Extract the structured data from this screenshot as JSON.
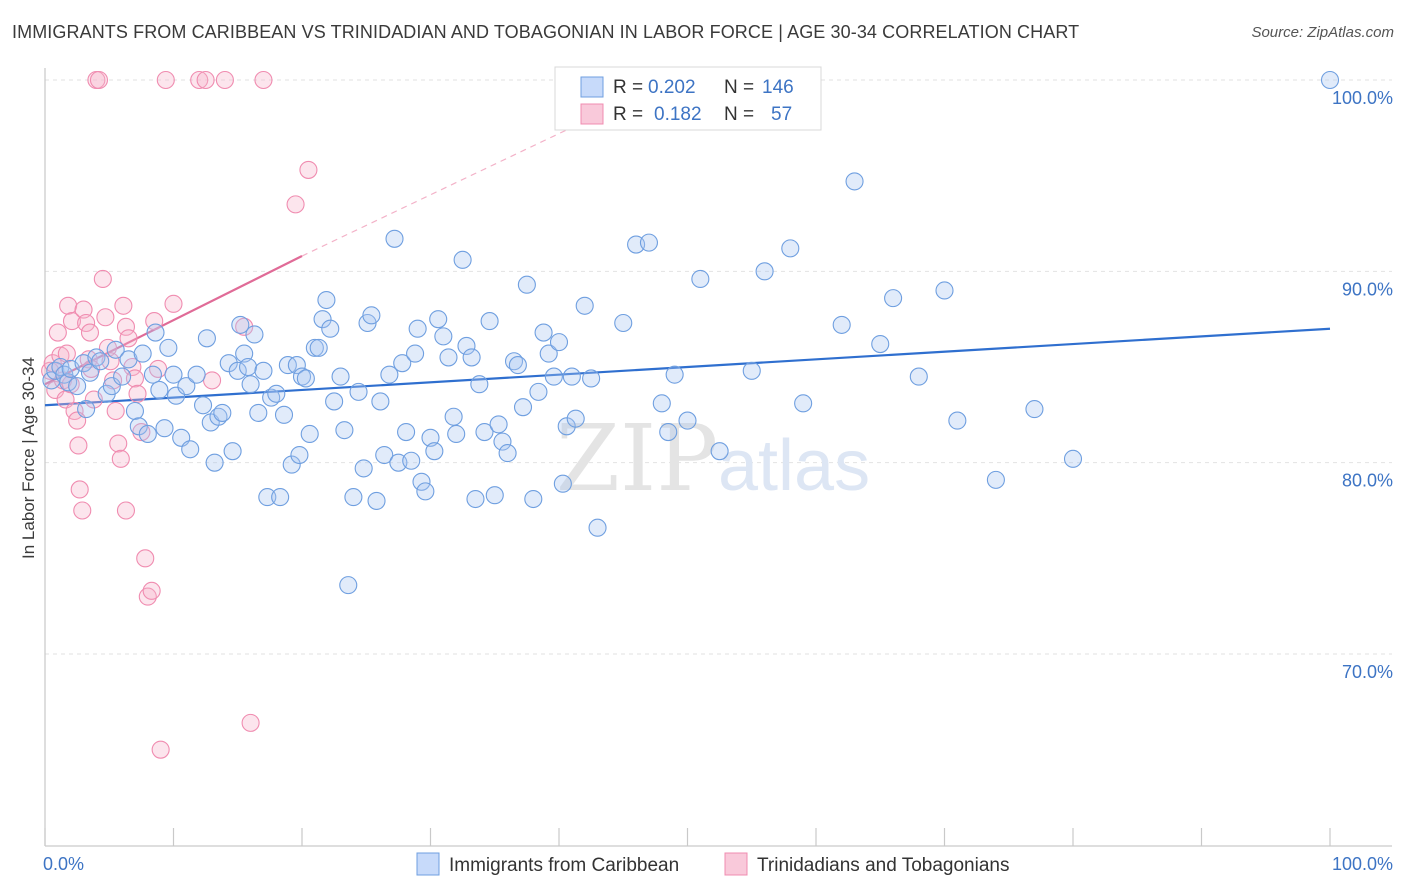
{
  "title": "IMMIGRANTS FROM CARIBBEAN VS TRINIDADIAN AND TOBAGONIAN IN LABOR FORCE | AGE 30-34 CORRELATION CHART",
  "source": "Source: ZipAtlas.com",
  "colors": {
    "blue": "#6f9fe0",
    "pink": "#f08cb0",
    "blue_line": "#2f6fcf",
    "pink_line": "#e06b97",
    "tick_text": "#3d74c4"
  },
  "chart_data": {
    "type": "scatter",
    "title": "IMMIGRANTS FROM CARIBBEAN VS TRINIDADIAN AND TOBAGONIAN IN LABOR FORCE | AGE 30-34 CORRELATION CHART",
    "xlabel": "",
    "ylabel": "In Labor Force | Age 30-34",
    "xlim": [
      0,
      100
    ],
    "ylim": [
      60.5,
      101.5
    ],
    "x_tick_labels": [
      "0.0%",
      "100.0%"
    ],
    "y_tick_values": [
      70,
      80,
      90,
      100
    ],
    "y_tick_labels": [
      "70.0%",
      "80.0%",
      "90.0%",
      "100.0%"
    ],
    "watermark": "ZIPatlas",
    "legend": [
      {
        "r_label": "R =",
        "r_value": "0.202",
        "n_label": "N =",
        "n_value": "146"
      },
      {
        "r_label": "R =",
        "r_value": "0.182",
        "n_label": "N =",
        "n_value": "57"
      }
    ],
    "series": [
      {
        "name": "Immigrants from Caribbean",
        "color": "#6f9fe0",
        "trend": {
          "x": [
            0,
            100
          ],
          "y": [
            83.0,
            87.0
          ],
          "style": "solid"
        },
        "points": [
          [
            0.5,
            84.3
          ],
          [
            0.8,
            84.8
          ],
          [
            1.2,
            85.0
          ],
          [
            1.5,
            84.6
          ],
          [
            1.8,
            84.2
          ],
          [
            2.0,
            84.9
          ],
          [
            2.5,
            84.0
          ],
          [
            3.0,
            85.2
          ],
          [
            3.2,
            82.8
          ],
          [
            3.5,
            84.7
          ],
          [
            4.0,
            85.5
          ],
          [
            4.3,
            85.3
          ],
          [
            4.8,
            83.6
          ],
          [
            5.2,
            84.0
          ],
          [
            5.5,
            85.9
          ],
          [
            6.0,
            84.5
          ],
          [
            6.5,
            85.4
          ],
          [
            7.0,
            82.7
          ],
          [
            7.3,
            81.9
          ],
          [
            7.6,
            85.7
          ],
          [
            8.0,
            81.5
          ],
          [
            8.4,
            84.6
          ],
          [
            8.6,
            86.8
          ],
          [
            8.9,
            83.8
          ],
          [
            9.3,
            81.8
          ],
          [
            9.6,
            86.0
          ],
          [
            10.0,
            84.6
          ],
          [
            10.2,
            83.5
          ],
          [
            10.6,
            81.3
          ],
          [
            11.0,
            84.0
          ],
          [
            11.3,
            80.7
          ],
          [
            11.8,
            84.6
          ],
          [
            12.3,
            83.0
          ],
          [
            12.6,
            86.5
          ],
          [
            12.9,
            82.1
          ],
          [
            13.2,
            80.0
          ],
          [
            13.5,
            82.4
          ],
          [
            13.8,
            82.6
          ],
          [
            14.3,
            85.2
          ],
          [
            14.6,
            80.6
          ],
          [
            15.0,
            84.8
          ],
          [
            15.2,
            87.2
          ],
          [
            15.5,
            85.7
          ],
          [
            15.8,
            85.0
          ],
          [
            16.0,
            84.1
          ],
          [
            16.3,
            86.7
          ],
          [
            16.6,
            82.6
          ],
          [
            17.0,
            84.8
          ],
          [
            17.3,
            78.2
          ],
          [
            17.6,
            83.4
          ],
          [
            18.0,
            83.6
          ],
          [
            18.3,
            78.2
          ],
          [
            18.6,
            82.5
          ],
          [
            18.9,
            85.1
          ],
          [
            19.2,
            79.9
          ],
          [
            19.6,
            85.1
          ],
          [
            19.8,
            80.4
          ],
          [
            20.0,
            84.5
          ],
          [
            20.3,
            84.4
          ],
          [
            20.6,
            81.5
          ],
          [
            21.0,
            86.0
          ],
          [
            21.3,
            86.0
          ],
          [
            21.6,
            87.5
          ],
          [
            21.9,
            88.5
          ],
          [
            22.2,
            87.0
          ],
          [
            22.5,
            83.2
          ],
          [
            23.0,
            84.5
          ],
          [
            23.3,
            81.7
          ],
          [
            23.6,
            73.6
          ],
          [
            24.0,
            78.2
          ],
          [
            24.4,
            83.7
          ],
          [
            24.8,
            79.7
          ],
          [
            25.1,
            87.3
          ],
          [
            25.4,
            87.7
          ],
          [
            25.8,
            78.0
          ],
          [
            26.1,
            83.2
          ],
          [
            26.4,
            80.4
          ],
          [
            26.8,
            84.6
          ],
          [
            27.2,
            91.7
          ],
          [
            27.5,
            80.0
          ],
          [
            27.8,
            85.2
          ],
          [
            28.1,
            81.6
          ],
          [
            28.5,
            80.1
          ],
          [
            28.8,
            85.7
          ],
          [
            29.0,
            87.0
          ],
          [
            29.3,
            79.0
          ],
          [
            29.6,
            78.5
          ],
          [
            30.0,
            81.3
          ],
          [
            30.3,
            80.6
          ],
          [
            30.6,
            87.5
          ],
          [
            31.0,
            86.6
          ],
          [
            31.4,
            85.5
          ],
          [
            31.8,
            82.4
          ],
          [
            32.0,
            81.5
          ],
          [
            32.5,
            90.6
          ],
          [
            32.8,
            86.1
          ],
          [
            33.2,
            85.5
          ],
          [
            33.5,
            78.1
          ],
          [
            33.8,
            84.1
          ],
          [
            34.2,
            81.6
          ],
          [
            34.6,
            87.4
          ],
          [
            35.0,
            78.3
          ],
          [
            35.3,
            82.0
          ],
          [
            35.6,
            81.1
          ],
          [
            36.0,
            80.5
          ],
          [
            36.5,
            85.3
          ],
          [
            36.8,
            85.1
          ],
          [
            37.2,
            82.9
          ],
          [
            37.5,
            89.3
          ],
          [
            38.0,
            78.1
          ],
          [
            38.4,
            83.7
          ],
          [
            38.8,
            86.8
          ],
          [
            39.2,
            85.7
          ],
          [
            39.6,
            84.5
          ],
          [
            40.0,
            86.3
          ],
          [
            40.3,
            78.9
          ],
          [
            40.6,
            81.9
          ],
          [
            41.0,
            84.5
          ],
          [
            41.3,
            82.3
          ],
          [
            42.0,
            88.2
          ],
          [
            42.5,
            84.4
          ],
          [
            43.0,
            76.6
          ],
          [
            45.0,
            87.3
          ],
          [
            46.0,
            91.4
          ],
          [
            47.0,
            91.5
          ],
          [
            48.0,
            83.1
          ],
          [
            48.5,
            81.6
          ],
          [
            49.0,
            84.6
          ],
          [
            50.0,
            82.2
          ],
          [
            51.0,
            89.6
          ],
          [
            52.5,
            80.6
          ],
          [
            55.0,
            84.8
          ],
          [
            56.0,
            90.0
          ],
          [
            58.0,
            91.2
          ],
          [
            59.0,
            83.1
          ],
          [
            62.0,
            87.2
          ],
          [
            63.0,
            94.7
          ],
          [
            65.0,
            86.2
          ],
          [
            66.0,
            88.6
          ],
          [
            68.0,
            84.5
          ],
          [
            70.0,
            89.0
          ],
          [
            71.0,
            82.2
          ],
          [
            74.0,
            79.1
          ],
          [
            77.0,
            82.8
          ],
          [
            80.0,
            80.2
          ],
          [
            100.0,
            100.0
          ]
        ]
      },
      {
        "name": "Trinidadians and Tobagonians",
        "color": "#f08cb0",
        "trend": {
          "x": [
            0,
            20
          ],
          "y": [
            84.1,
            90.8
          ],
          "dashed_to": [
            50,
            100.4
          ],
          "style": "solid+dashed"
        },
        "points": [
          [
            0.4,
            84.8
          ],
          [
            0.6,
            85.2
          ],
          [
            0.8,
            83.8
          ],
          [
            1.0,
            86.8
          ],
          [
            1.2,
            85.6
          ],
          [
            1.4,
            84.3
          ],
          [
            1.6,
            83.3
          ],
          [
            1.7,
            85.7
          ],
          [
            1.8,
            88.2
          ],
          [
            2.0,
            84.1
          ],
          [
            2.1,
            87.4
          ],
          [
            2.3,
            82.7
          ],
          [
            2.5,
            82.2
          ],
          [
            2.6,
            80.9
          ],
          [
            2.7,
            78.6
          ],
          [
            2.9,
            77.5
          ],
          [
            3.0,
            88.0
          ],
          [
            3.2,
            87.3
          ],
          [
            3.4,
            85.4
          ],
          [
            3.6,
            84.9
          ],
          [
            3.8,
            83.3
          ],
          [
            4.0,
            100.0
          ],
          [
            4.2,
            100.0
          ],
          [
            4.5,
            89.6
          ],
          [
            4.7,
            87.6
          ],
          [
            4.9,
            86.0
          ],
          [
            5.1,
            85.3
          ],
          [
            5.3,
            84.3
          ],
          [
            5.5,
            82.7
          ],
          [
            5.7,
            81.0
          ],
          [
            5.9,
            80.2
          ],
          [
            6.1,
            88.2
          ],
          [
            6.3,
            87.1
          ],
          [
            6.5,
            86.5
          ],
          [
            6.8,
            85.0
          ],
          [
            7.0,
            84.4
          ],
          [
            7.2,
            83.6
          ],
          [
            7.5,
            81.6
          ],
          [
            7.8,
            75.0
          ],
          [
            8.0,
            73.0
          ],
          [
            8.3,
            73.3
          ],
          [
            8.5,
            87.4
          ],
          [
            8.8,
            84.9
          ],
          [
            9.0,
            65.0
          ],
          [
            9.4,
            100.0
          ],
          [
            10.0,
            88.3
          ],
          [
            12.0,
            100.0
          ],
          [
            12.5,
            100.0
          ],
          [
            13.0,
            84.3
          ],
          [
            14.0,
            100.0
          ],
          [
            15.5,
            87.1
          ],
          [
            16.0,
            66.4
          ],
          [
            17.0,
            100.0
          ],
          [
            19.5,
            93.5
          ],
          [
            20.5,
            95.3
          ],
          [
            6.3,
            77.5
          ],
          [
            3.5,
            86.8
          ]
        ]
      }
    ]
  },
  "bottom_legend": {
    "blue_label": "Immigrants from Caribbean",
    "pink_label": "Trinidadians and Tobagonians"
  }
}
